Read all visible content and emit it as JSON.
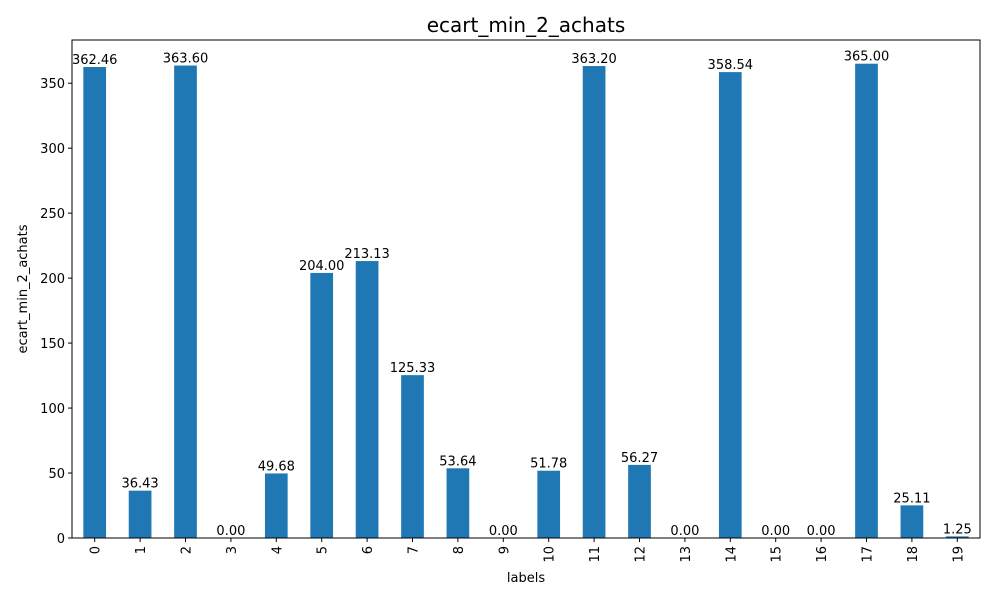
{
  "chart_data": {
    "type": "bar",
    "title": "ecart_min_2_achats",
    "xlabel": "labels",
    "ylabel": "ecart_min_2_achats",
    "categories": [
      "0",
      "1",
      "2",
      "3",
      "4",
      "5",
      "6",
      "7",
      "8",
      "9",
      "10",
      "11",
      "12",
      "13",
      "14",
      "15",
      "16",
      "17",
      "18",
      "19"
    ],
    "values": [
      362.46,
      36.43,
      363.6,
      0.0,
      49.68,
      204.0,
      213.13,
      125.33,
      53.64,
      0.0,
      51.78,
      363.2,
      56.27,
      0.0,
      358.54,
      0.0,
      0.0,
      365.0,
      25.11,
      1.25
    ],
    "value_labels": [
      "362.46",
      "36.43",
      "363.60",
      "0.00",
      "49.68",
      "204.00",
      "213.13",
      "125.33",
      "53.64",
      "0.00",
      "51.78",
      "363.20",
      "56.27",
      "0.00",
      "358.54",
      "0.00",
      "0.00",
      "365.00",
      "25.11",
      "1.25"
    ],
    "ylim": [
      0,
      383.25
    ],
    "yticks": [
      0,
      50,
      100,
      150,
      200,
      250,
      300,
      350
    ],
    "grid": false,
    "legend": "none",
    "bar_color": "#1f77b4"
  }
}
